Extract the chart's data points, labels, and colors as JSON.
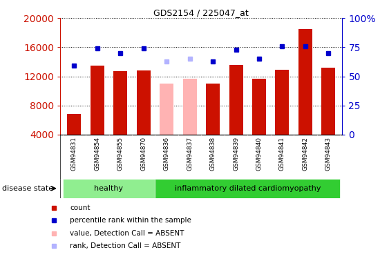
{
  "title": "GDS2154 / 225047_at",
  "samples": [
    "GSM94831",
    "GSM94854",
    "GSM94855",
    "GSM94870",
    "GSM94836",
    "GSM94837",
    "GSM94838",
    "GSM94839",
    "GSM94840",
    "GSM94841",
    "GSM94842",
    "GSM94843"
  ],
  "counts": [
    6800,
    13500,
    12700,
    12800,
    11000,
    11700,
    11000,
    13600,
    11700,
    12900,
    18500,
    13200
  ],
  "ranks": [
    59,
    74,
    70,
    74,
    63,
    65,
    63,
    73,
    65,
    76,
    76,
    70
  ],
  "absent_indices": [
    4,
    5
  ],
  "absent_bar_color": "#ffb3b3",
  "absent_rank_color": "#b3b3ff",
  "bar_color": "#cc1100",
  "rank_color": "#0000cc",
  "ylim_left": [
    4000,
    20000
  ],
  "ylim_right": [
    0,
    100
  ],
  "yticks_left": [
    4000,
    8000,
    12000,
    16000,
    20000
  ],
  "yticks_right": [
    0,
    25,
    50,
    75,
    100
  ],
  "group_healthy": [
    0,
    1,
    2,
    3
  ],
  "group_inflammatory": [
    4,
    5,
    6,
    7,
    8,
    9,
    10,
    11
  ],
  "group_healthy_label": "healthy",
  "group_inflammatory_label": "inflammatory dilated cardiomyopathy",
  "disease_state_label": "disease state",
  "healthy_color": "#90ee90",
  "inflammatory_color": "#32cd32",
  "xtick_bg_color": "#c8c8c8",
  "legend_items": [
    {
      "label": "count",
      "color": "#cc1100"
    },
    {
      "label": "percentile rank within the sample",
      "color": "#0000cc"
    },
    {
      "label": "value, Detection Call = ABSENT",
      "color": "#ffb3b3"
    },
    {
      "label": "rank, Detection Call = ABSENT",
      "color": "#b3b3ff"
    }
  ],
  "background_color": "#ffffff",
  "tick_label_color_left": "#cc1100",
  "tick_label_color_right": "#0000cc"
}
